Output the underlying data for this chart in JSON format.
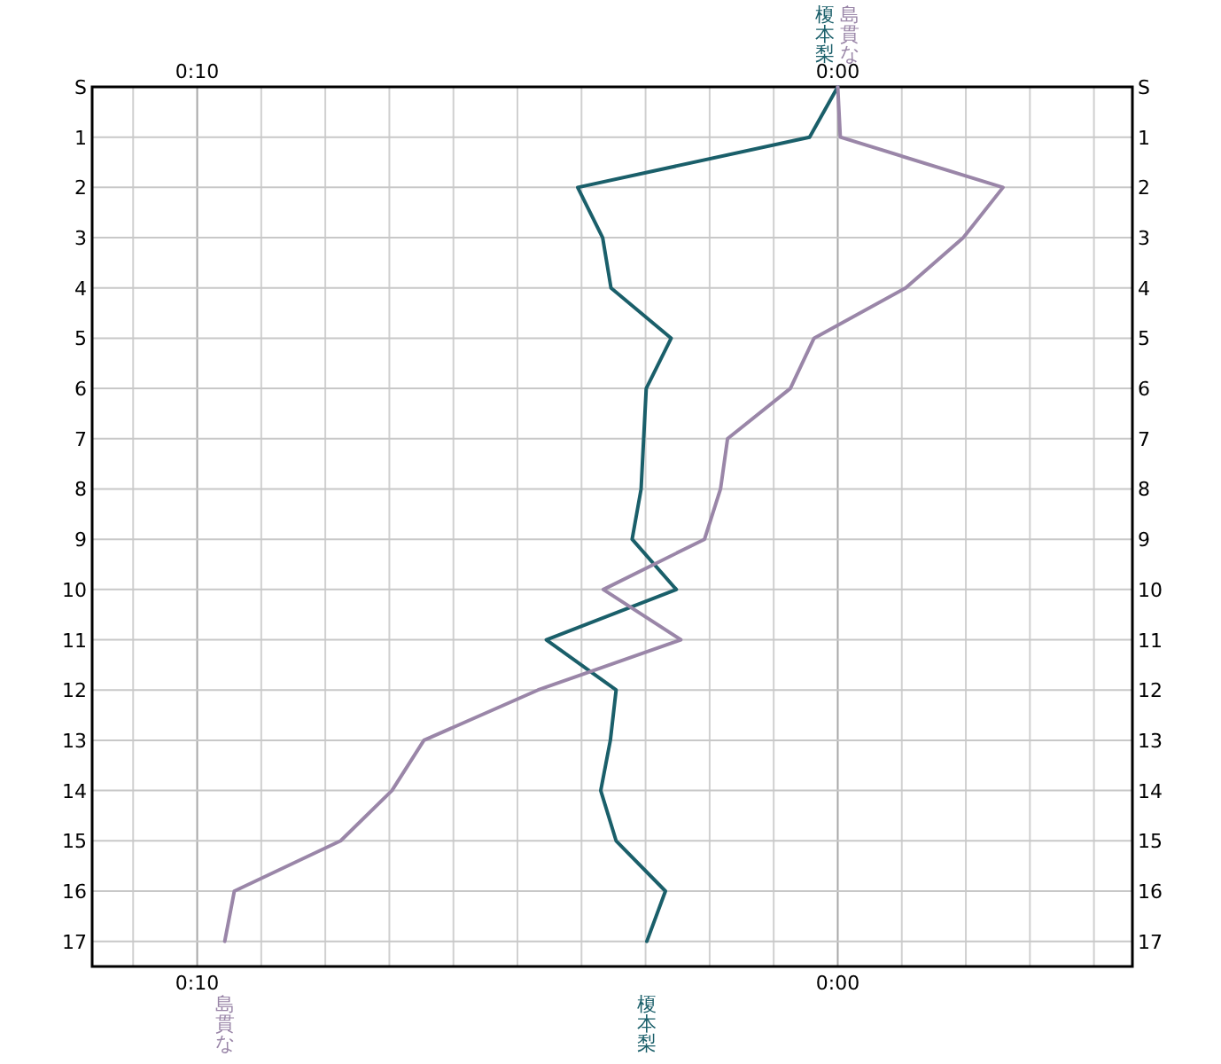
{
  "chart_data": {
    "type": "line",
    "orientation": "horizontal",
    "categories": [
      "S",
      "1",
      "2",
      "3",
      "4",
      "5",
      "6",
      "7",
      "8",
      "9",
      "10",
      "11",
      "12",
      "13",
      "14",
      "15",
      "16",
      "17"
    ],
    "series": [
      {
        "name": "榎本梨",
        "color": "#1a5f6a",
        "values": [
          0,
          0.44,
          4.06,
          3.67,
          3.54,
          2.6,
          2.99,
          3.03,
          3.07,
          3.21,
          2.52,
          4.55,
          3.46,
          3.55,
          3.7,
          3.46,
          2.69,
          2.98
        ]
      },
      {
        "name": "島貫な",
        "color": "#9a86a8",
        "values": [
          0,
          -0.04,
          -2.58,
          -1.96,
          -1.06,
          0.37,
          0.74,
          1.72,
          1.83,
          2.08,
          3.66,
          2.45,
          4.68,
          6.46,
          6.96,
          7.76,
          9.42,
          9.57
        ]
      }
    ],
    "xlim": [
      11.64,
      -4.6
    ],
    "xticks": [
      {
        "value": 11,
        "label": null
      },
      {
        "value": 10,
        "label": "0:10"
      },
      {
        "value": 9,
        "label": null
      },
      {
        "value": 8,
        "label": null
      },
      {
        "value": 7,
        "label": null
      },
      {
        "value": 6,
        "label": null
      },
      {
        "value": 5,
        "label": null
      },
      {
        "value": 4,
        "label": null
      },
      {
        "value": 3,
        "label": null
      },
      {
        "value": 2,
        "label": null
      },
      {
        "value": 1,
        "label": null
      },
      {
        "value": 0,
        "label": "0:00"
      },
      {
        "value": -1,
        "label": null
      },
      {
        "value": -2,
        "label": null
      },
      {
        "value": -3,
        "label": null
      },
      {
        "value": -4,
        "label": null
      }
    ],
    "x2lim": [
      11.64,
      -4.6
    ],
    "x2ticks": [
      {
        "value": 10,
        "label": "0:10"
      },
      {
        "value": 0,
        "label": "0:00"
      }
    ],
    "grid": true
  }
}
